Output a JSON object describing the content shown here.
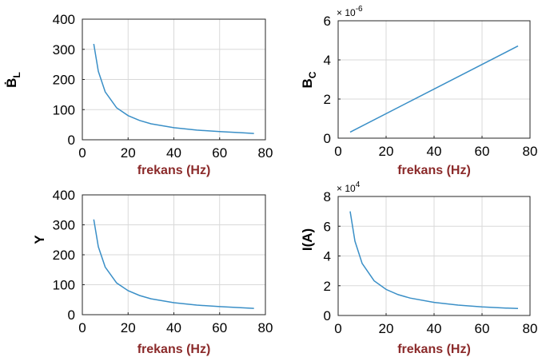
{
  "colors": {
    "series": "#3a8fc7",
    "xlabel": "#8b2a2a"
  },
  "chart_data": [
    {
      "type": "line",
      "xlabel": "frekans (Hz)",
      "ylabel": {
        "main": "B",
        "sub": "L",
        "accent": "̇"
      },
      "multiplier": {
        "base": "",
        "exp": ""
      },
      "xlim": [
        0,
        80
      ],
      "ylim": [
        0,
        400
      ],
      "xticks": [
        0,
        20,
        40,
        60,
        80
      ],
      "yticks": [
        0,
        100,
        200,
        300,
        400
      ],
      "grid": true,
      "series": [
        {
          "x": [
            5,
            7,
            10,
            15,
            20,
            25,
            30,
            40,
            50,
            60,
            70,
            75
          ],
          "y": [
            318,
            227,
            159,
            106,
            80,
            64,
            53,
            40,
            32,
            27,
            23,
            21
          ]
        }
      ]
    },
    {
      "type": "line",
      "xlabel": "frekans (Hz)",
      "ylabel": {
        "main": "B",
        "sub": "C",
        "accent": ""
      },
      "multiplier": {
        "base": "× 10",
        "exp": "-6"
      },
      "xlim": [
        0,
        80
      ],
      "ylim": [
        0,
        6
      ],
      "xticks": [
        0,
        20,
        40,
        60,
        80
      ],
      "yticks": [
        0,
        2,
        4,
        6
      ],
      "grid": true,
      "series": [
        {
          "x": [
            5,
            75
          ],
          "y": [
            0.31,
            4.71
          ]
        }
      ]
    },
    {
      "type": "line",
      "xlabel": "frekans (Hz)",
      "ylabel": {
        "main": "Y",
        "sub": "",
        "accent": ""
      },
      "multiplier": {
        "base": "",
        "exp": ""
      },
      "xlim": [
        0,
        80
      ],
      "ylim": [
        0,
        400
      ],
      "xticks": [
        0,
        20,
        40,
        60,
        80
      ],
      "yticks": [
        0,
        100,
        200,
        300,
        400
      ],
      "grid": true,
      "series": [
        {
          "x": [
            5,
            7,
            10,
            15,
            20,
            25,
            30,
            40,
            50,
            60,
            70,
            75
          ],
          "y": [
            318,
            227,
            159,
            106,
            80,
            64,
            53,
            40,
            32,
            27,
            23,
            21
          ]
        }
      ]
    },
    {
      "type": "line",
      "xlabel": "frekans (Hz)",
      "ylabel": {
        "main": "I(A)",
        "sub": "",
        "accent": ""
      },
      "multiplier": {
        "base": "× 10",
        "exp": "4"
      },
      "xlim": [
        0,
        80
      ],
      "ylim": [
        0,
        8
      ],
      "xticks": [
        0,
        20,
        40,
        60,
        80
      ],
      "yticks": [
        0,
        2,
        4,
        6,
        8
      ],
      "grid": true,
      "series": [
        {
          "x": [
            5,
            7,
            10,
            15,
            20,
            25,
            30,
            40,
            50,
            60,
            70,
            75
          ],
          "y": [
            7.0,
            5.0,
            3.5,
            2.33,
            1.75,
            1.4,
            1.17,
            0.88,
            0.7,
            0.58,
            0.5,
            0.47
          ]
        }
      ]
    }
  ]
}
